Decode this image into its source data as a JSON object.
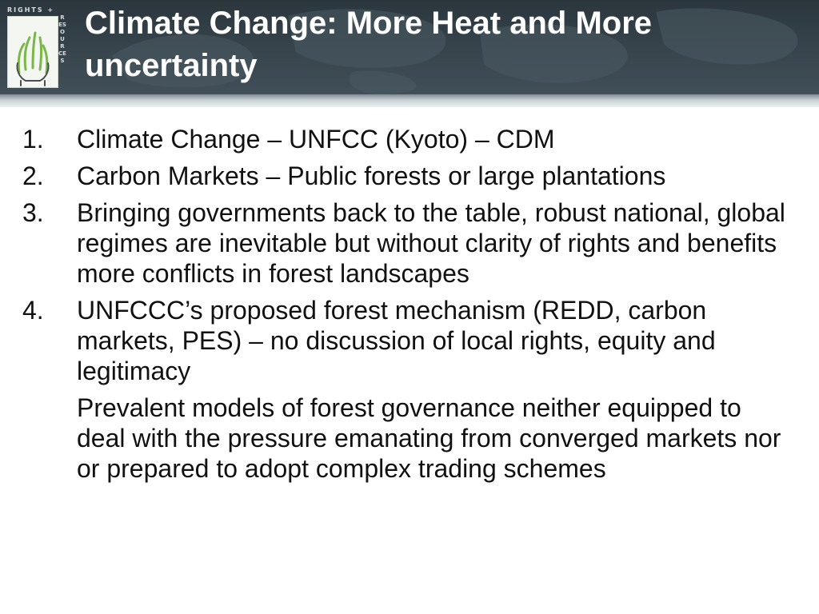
{
  "slide": {
    "title": "Climate Change: More Heat and More uncertainty",
    "logo": {
      "top_text": "RIGHTS +",
      "side_text": "RESOURCES"
    },
    "items": [
      {
        "number": "1.",
        "text": "Climate Change – UNFCC (Kyoto) – CDM"
      },
      {
        "number": "2.",
        "text": "Carbon Markets – Public forests or large plantations"
      },
      {
        "number": "3.",
        "text": "Bringing governments back to the table, robust national, global regimes are inevitable but without clarity of rights and benefits more conflicts in forest landscapes"
      },
      {
        "number": "4.",
        "text": "UNFCCC’s proposed forest mechanism (REDD, carbon markets, PES) – no discussion of local rights, equity and legitimacy"
      },
      {
        "number": "",
        "text": "Prevalent models of forest governance neither equipped to deal with the pressure emanating from converged markets nor or prepared to adopt complex trading schemes"
      }
    ]
  },
  "colors": {
    "header_background": "#38454d",
    "title_text": "#ffffff",
    "body_text": "#111111",
    "logo_green": "#7ab648"
  },
  "icons": {
    "logo": "rights-resources-logo-icon"
  }
}
